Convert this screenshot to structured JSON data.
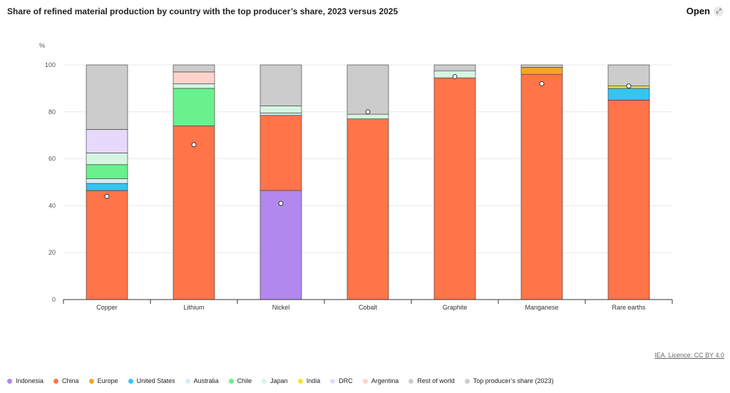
{
  "header": {
    "title": "Share of refined material production by country with the top producer’s share, 2023 versus 2025",
    "open_label": "Open",
    "open_icon": "expand-icon"
  },
  "license": "IEA. Licence: CC BY 4.0",
  "chart_data": {
    "type": "bar",
    "stacked": true,
    "ylabel": "%",
    "ylim": [
      0,
      100
    ],
    "yticks": [
      0,
      20,
      40,
      60,
      80,
      100
    ],
    "grid": true,
    "legend_position": "bottom",
    "categories": [
      "Copper",
      "Lithium",
      "Nickel",
      "Cobalt",
      "Graphite",
      "Manganese",
      "Rare earths"
    ],
    "series": [
      {
        "name": "Indonesia",
        "color": "#b288ee",
        "values": [
          0,
          0,
          46.5,
          0,
          0,
          0,
          0
        ]
      },
      {
        "name": "China",
        "color": "#ff7449",
        "values": [
          46.5,
          74,
          32,
          77,
          94.5,
          96,
          85
        ]
      },
      {
        "name": "Europe",
        "color": "#f5a623",
        "values": [
          0,
          0,
          0,
          0,
          0,
          3,
          0
        ]
      },
      {
        "name": "United States",
        "color": "#36c5f0",
        "values": [
          3,
          0,
          0,
          0,
          0,
          0,
          5
        ]
      },
      {
        "name": "Australia",
        "color": "#d8ecf8",
        "values": [
          2,
          0,
          1,
          0,
          0,
          0,
          0
        ]
      },
      {
        "name": "Chile",
        "color": "#6bf08e",
        "values": [
          6,
          16,
          0,
          0,
          0,
          0,
          0
        ]
      },
      {
        "name": "Japan",
        "color": "#d5f5e3",
        "values": [
          5,
          2,
          3,
          2,
          3,
          0,
          0
        ]
      },
      {
        "name": "India",
        "color": "#ffe135",
        "values": [
          0,
          0,
          0,
          0,
          0,
          0,
          1
        ]
      },
      {
        "name": "DRC",
        "color": "#e6d9fb",
        "values": [
          10,
          0,
          0,
          0,
          0,
          0,
          0
        ]
      },
      {
        "name": "Argentina",
        "color": "#ffd3cb",
        "values": [
          0,
          5,
          0,
          0,
          0,
          0,
          0
        ]
      },
      {
        "name": "Rest of world",
        "color": "#cccccc",
        "values": [
          27.5,
          3,
          17.5,
          21,
          2.5,
          1,
          9
        ]
      }
    ],
    "top_producer_share_2023": {
      "name": "Top producer’s share (2023)",
      "values": [
        44,
        66,
        41,
        80,
        95,
        92,
        91
      ]
    }
  }
}
